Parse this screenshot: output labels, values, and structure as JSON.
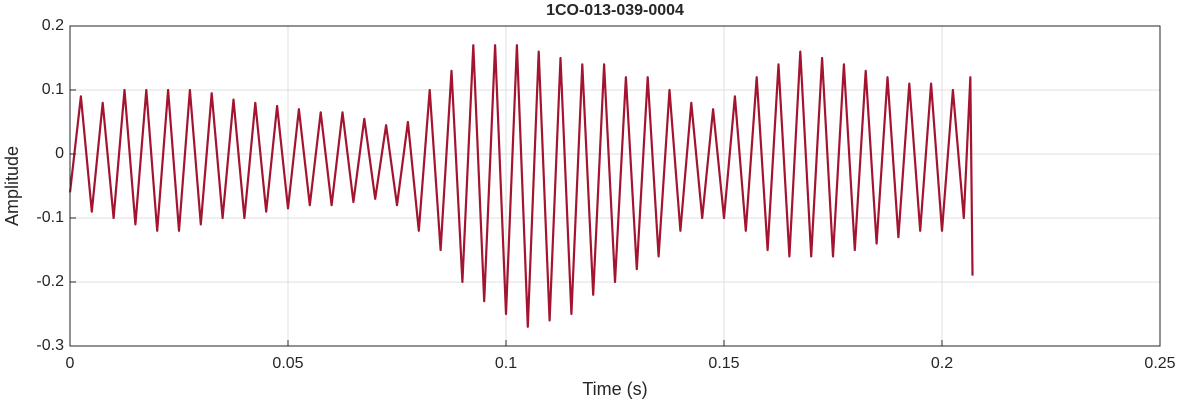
{
  "chart_data": {
    "type": "line",
    "title": "1CO-013-039-0004",
    "xlabel": "Time (s)",
    "ylabel": "Amplitude",
    "xlim": [
      0,
      0.25
    ],
    "xticks": [
      0,
      0.05,
      0.1,
      0.15,
      0.2,
      0.25
    ],
    "ylim": [
      -0.3,
      0.2
    ],
    "yticks": [
      -0.3,
      -0.2,
      -0.1,
      0,
      0.1,
      0.2
    ],
    "grid": true,
    "series": [
      {
        "color": "#a2142f",
        "x": [
          0,
          0.0025,
          0.005,
          0.0075,
          0.01,
          0.0125,
          0.015,
          0.0175,
          0.02,
          0.0225,
          0.025,
          0.0275,
          0.03,
          0.0325,
          0.035,
          0.0375,
          0.04,
          0.0425,
          0.045,
          0.0475,
          0.05,
          0.0525,
          0.055,
          0.0575,
          0.06,
          0.0625,
          0.065,
          0.0675,
          0.07,
          0.0725,
          0.075,
          0.0775,
          0.08,
          0.0825,
          0.085,
          0.0875,
          0.09,
          0.0925,
          0.095,
          0.0975,
          0.1,
          0.1025,
          0.105,
          0.1075,
          0.11,
          0.1125,
          0.115,
          0.1175,
          0.12,
          0.1225,
          0.125,
          0.1275,
          0.13,
          0.1325,
          0.135,
          0.1375,
          0.14,
          0.1425,
          0.145,
          0.1475,
          0.15,
          0.1525,
          0.155,
          0.1575,
          0.16,
          0.1625,
          0.165,
          0.1675,
          0.17,
          0.1725,
          0.175,
          0.1775,
          0.18,
          0.1825,
          0.185,
          0.1875,
          0.19,
          0.1925,
          0.195,
          0.1975,
          0.2,
          0.2025,
          0.205,
          0.2065,
          0.207
        ],
        "values": [
          -0.06,
          0.09,
          -0.09,
          0.08,
          -0.1,
          0.1,
          -0.11,
          0.1,
          -0.12,
          0.1,
          -0.12,
          0.1,
          -0.11,
          0.095,
          -0.1,
          0.085,
          -0.1,
          0.08,
          -0.09,
          0.075,
          -0.085,
          0.07,
          -0.08,
          0.065,
          -0.08,
          0.065,
          -0.075,
          0.055,
          -0.07,
          0.045,
          -0.08,
          0.05,
          -0.12,
          0.1,
          -0.15,
          0.13,
          -0.2,
          0.17,
          -0.23,
          0.17,
          -0.25,
          0.17,
          -0.27,
          0.16,
          -0.26,
          0.15,
          -0.25,
          0.14,
          -0.22,
          0.14,
          -0.2,
          0.12,
          -0.18,
          0.12,
          -0.16,
          0.1,
          -0.12,
          0.08,
          -0.1,
          0.07,
          -0.1,
          0.09,
          -0.12,
          0.12,
          -0.15,
          0.14,
          -0.16,
          0.16,
          -0.16,
          0.15,
          -0.16,
          0.14,
          -0.15,
          0.13,
          -0.14,
          0.12,
          -0.13,
          0.11,
          -0.12,
          0.11,
          -0.12,
          0.1,
          -0.1,
          0.12,
          -0.19
        ]
      }
    ]
  }
}
